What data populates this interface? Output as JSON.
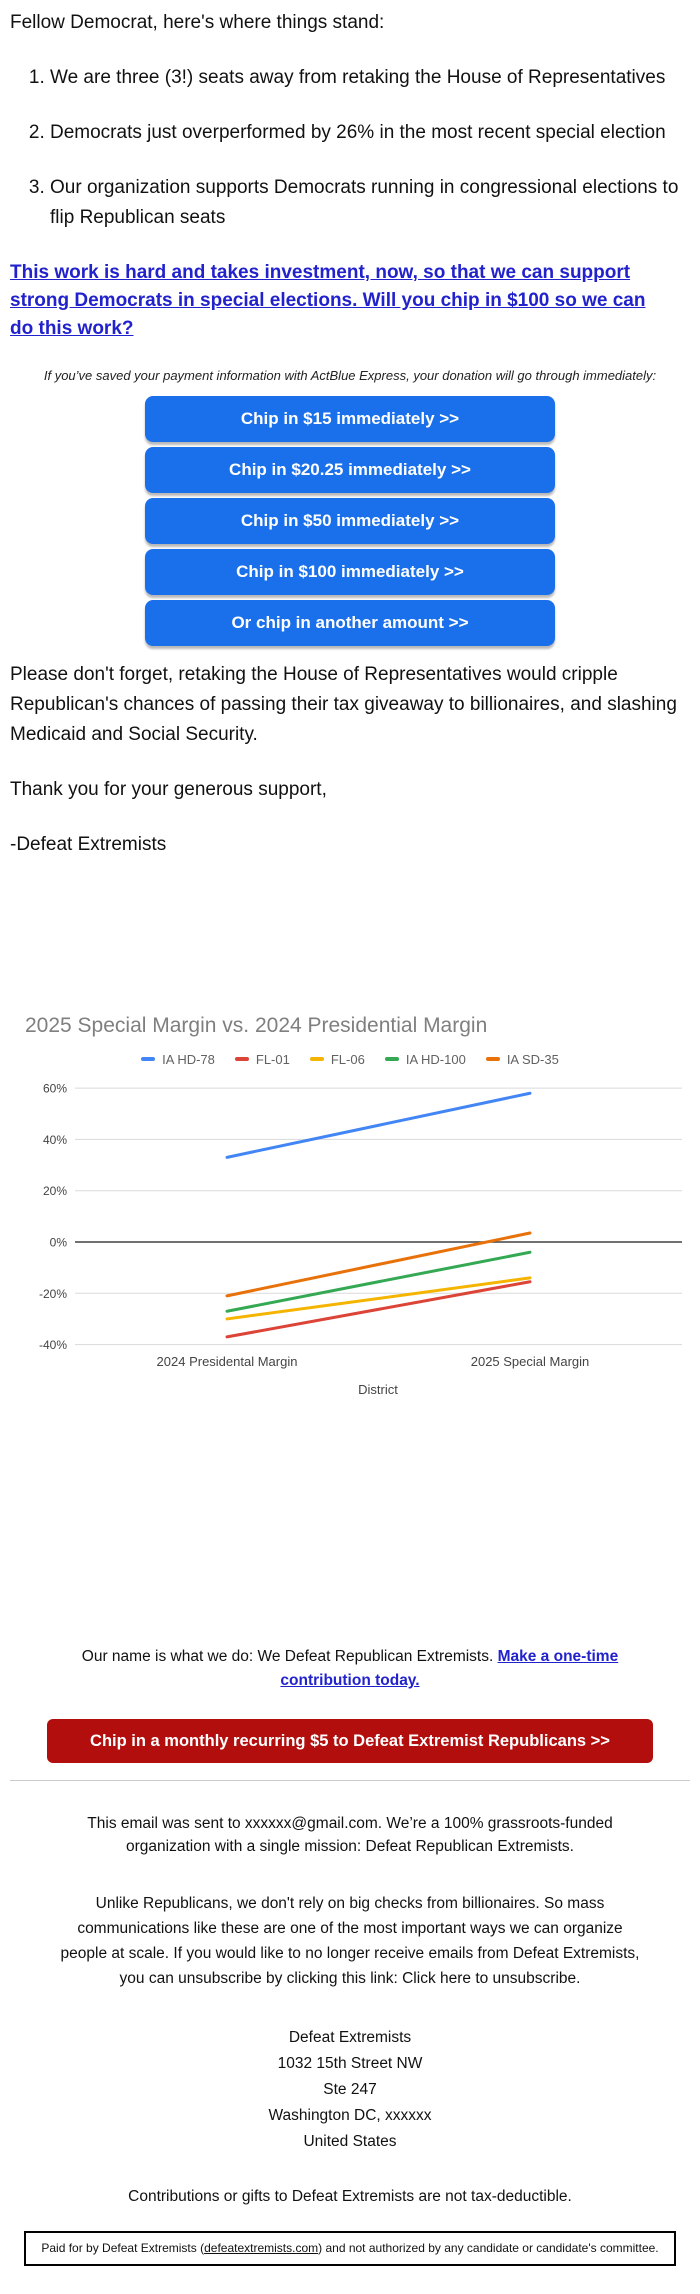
{
  "greeting": "Fellow Democrat, here's where things stand:",
  "list": {
    "items": [
      "We are three (3!) seats away from retaking the House of Representatives",
      "Democrats just overperformed by 26% in the most recent special election",
      "Our organization supports Democrats running in congressional elections to flip Republican seats"
    ]
  },
  "cta": {
    "lines": [
      "This work is hard and takes investment, now, so that we can support",
      "strong Democrats in special elections. Will you chip in $100 so we can",
      "do this work?"
    ]
  },
  "donate": {
    "note": "If you’ve saved your payment information with ActBlue Express, your donation will go through immediately:",
    "button_color": "#1A70EB",
    "buttons": [
      "Chip in $15 immediately >>",
      "Chip in $20.25 immediately >>",
      "Chip in $50 immediately >>",
      "Chip in $100 immediately >>",
      "Or chip in another amount >>"
    ]
  },
  "body": {
    "p1": "Please don't forget, retaking the House of Representatives would cripple Republican's chances of passing their tax giveaway to billionaires, and slashing Medicaid and Social Security.",
    "p2": "Thank you for your generous support,",
    "signature": "-Defeat Extremists"
  },
  "chart_data": {
    "type": "line",
    "title": "2025 Special Margin vs. 2024 Presidential Margin",
    "categories": [
      "2024 Presidental Margin",
      "2025 Special Margin"
    ],
    "xlabel": "District",
    "ylabel": "",
    "ylim": [
      -44,
      64
    ],
    "grid": true,
    "legend_position": "top",
    "y_ticks": [
      60,
      40,
      20,
      0,
      -20,
      -40
    ],
    "y_tick_labels": [
      "60%",
      "40%",
      "20%",
      "0%",
      "-20%",
      "-40%"
    ],
    "series": [
      {
        "name": "IA HD-78",
        "color": "#4285F4",
        "values": [
          33,
          58
        ]
      },
      {
        "name": "FL-01",
        "color": "#DB4437",
        "values": [
          -37,
          -15.5
        ]
      },
      {
        "name": "FL-06",
        "color": "#F4B400",
        "values": [
          -30,
          -14
        ]
      },
      {
        "name": "IA HD-100",
        "color": "#34A853",
        "values": [
          -27,
          -4
        ]
      },
      {
        "name": "IA SD-35",
        "color": "#E8710A",
        "values": [
          -21,
          3.5
        ]
      }
    ]
  },
  "footer": {
    "mission": {
      "text": "Our name is what we do: We Defeat Republican Extremists. ",
      "link_l1": "Make a one-time",
      "link_l2": "contribution today."
    },
    "monthly_button": "Chip in a monthly recurring $5 to Defeat Extremist Republicans >>",
    "monthly_button_color": "#B30E0E",
    "sent_lines": [
      "This email was sent to xxxxxx@gmail.com. We’re a 100% grassroots-funded",
      "organization with a single mission: Defeat Republican Extremists."
    ],
    "unsub_lines": [
      "Unlike Republicans, we don't rely on big checks from billionaires. So mass",
      "communications like these are one of the most important ways we can organize",
      "people at scale. If you would like to no longer receive emails from Defeat Extremists,",
      "you can unsubscribe by clicking this link: Click here to unsubscribe."
    ],
    "address_lines": [
      "Defeat Extremists",
      "1032 15th Street NW",
      "Ste 247",
      "Washington DC, xxxxxx",
      "United States"
    ],
    "tax_note": "Contributions or gifts to Defeat Extremists are not tax-deductible.",
    "disclaimer": {
      "pre": "Paid for by Defeat Extremists (",
      "link": "defeatextremists.com",
      "post": ") and not authorized by any candidate or candidate's committee."
    }
  }
}
